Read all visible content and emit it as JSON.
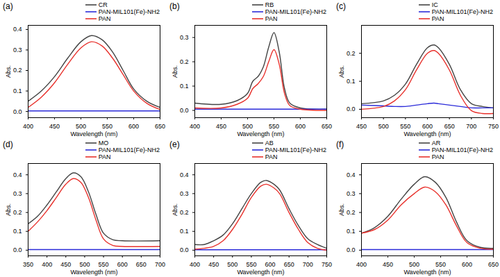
{
  "chart_data": [
    {
      "type": "line",
      "title": "(a)",
      "x_label": "Wavelength (nm)",
      "y_label": "Abs.",
      "legend": "top-right",
      "x": [
        400,
        425,
        450,
        475,
        500,
        520,
        540,
        560,
        580,
        600,
        625,
        650
      ],
      "xlim": [
        400,
        650
      ],
      "xticks": [
        400,
        450,
        500,
        550,
        600,
        650
      ],
      "ylim": [
        -0.03,
        0.42
      ],
      "yticks": [
        {
          "value": 0,
          "label": "0.0"
        },
        0.1,
        0.2,
        0.3,
        0.4
      ],
      "series": [
        {
          "name": "CR",
          "color": "#444444",
          "line_style": "solid",
          "values": [
            0.05,
            0.1,
            0.17,
            0.26,
            0.34,
            0.37,
            0.35,
            0.29,
            0.2,
            0.11,
            0.05,
            0.02
          ]
        },
        {
          "name": "PAN-MIL101(Fe)-NH2",
          "color": "#2b2bd9",
          "line_style": "solid",
          "values": [
            0.003,
            0.003,
            0.003,
            0.003,
            0.003,
            0.003,
            0.003,
            0.003,
            0.003,
            0.003,
            0.003,
            0.003
          ]
        },
        {
          "name": "PAN",
          "color": "#e8312c",
          "line_style": "solid",
          "values": [
            0.02,
            0.07,
            0.14,
            0.23,
            0.31,
            0.34,
            0.32,
            0.26,
            0.18,
            0.1,
            0.04,
            0.01
          ]
        }
      ]
    },
    {
      "type": "line",
      "title": "(b)",
      "x_label": "Wavelength (nm)",
      "y_label": "Abs.",
      "legend": "top-right",
      "x": [
        400,
        450,
        480,
        500,
        510,
        520,
        530,
        540,
        550,
        560,
        570,
        580,
        600,
        650
      ],
      "xlim": [
        400,
        650
      ],
      "xticks": [
        400,
        450,
        500,
        550,
        600,
        650
      ],
      "ylim": [
        -0.03,
        0.35
      ],
      "yticks": [
        {
          "value": 0,
          "label": "0.0"
        },
        0.1,
        0.2,
        0.3
      ],
      "series": [
        {
          "name": "RB",
          "color": "#444444",
          "line_style": "solid",
          "values": [
            0.03,
            0.025,
            0.04,
            0.07,
            0.12,
            0.14,
            0.18,
            0.26,
            0.32,
            0.24,
            0.09,
            0.03,
            0.01,
            0.005
          ]
        },
        {
          "name": "PAN-MIL101(Fe)-NH2",
          "color": "#2b2bd9",
          "line_style": "solid",
          "values": [
            0.005,
            0.005,
            0.005,
            0.005,
            0.005,
            0.005,
            0.005,
            0.005,
            0.005,
            0.005,
            0.005,
            0.005,
            0.005,
            0.005
          ]
        },
        {
          "name": "PAN",
          "color": "#e8312c",
          "line_style": "solid",
          "values": [
            0.01,
            0.01,
            0.025,
            0.05,
            0.09,
            0.11,
            0.14,
            0.2,
            0.25,
            0.19,
            0.07,
            0.02,
            0.005,
            0.0
          ]
        }
      ]
    },
    {
      "type": "line",
      "title": "(c)",
      "x_label": "Wavelength (nm)",
      "y_label": "Abs.",
      "legend": "top-right",
      "x": [
        450,
        500,
        525,
        550,
        575,
        600,
        615,
        625,
        650,
        675,
        700,
        725,
        750
      ],
      "xlim": [
        450,
        750
      ],
      "xticks": [
        450,
        500,
        550,
        600,
        650,
        700,
        750
      ],
      "ylim": [
        -0.03,
        0.3
      ],
      "yticks": [
        {
          "value": 0,
          "label": "0.0"
        },
        0.1,
        0.2
      ],
      "series": [
        {
          "name": "IC",
          "color": "#444444",
          "line_style": "solid",
          "values": [
            0.02,
            0.03,
            0.05,
            0.09,
            0.16,
            0.22,
            0.23,
            0.22,
            0.16,
            0.07,
            0.02,
            0.01,
            0.005
          ]
        },
        {
          "name": "PAN-MIL101(Fe)-NH2",
          "color": "#2b2bd9",
          "line_style": "solid",
          "values": [
            0.015,
            0.012,
            0.01,
            0.01,
            0.015,
            0.02,
            0.022,
            0.02,
            0.015,
            0.01,
            0.005,
            0.005,
            0.005
          ]
        },
        {
          "name": "PAN",
          "color": "#e8312c",
          "line_style": "solid",
          "values": [
            0.0,
            0.01,
            0.03,
            0.07,
            0.14,
            0.2,
            0.21,
            0.2,
            0.14,
            0.05,
            -0.005,
            -0.015,
            -0.015
          ]
        }
      ]
    },
    {
      "type": "line",
      "title": "(d)",
      "x_label": "Wavelength (nm)",
      "y_label": "Abs.",
      "legend": "top-right",
      "x": [
        350,
        375,
        400,
        425,
        450,
        470,
        490,
        510,
        530,
        550,
        575,
        600,
        700
      ],
      "xlim": [
        350,
        700
      ],
      "xticks": [
        350,
        400,
        450,
        500,
        550,
        600,
        650,
        700
      ],
      "ylim": [
        -0.03,
        0.46
      ],
      "yticks": [
        {
          "value": 0,
          "label": "0.0"
        },
        0.1,
        0.2,
        0.3,
        0.4
      ],
      "series": [
        {
          "name": "MO",
          "color": "#444444",
          "line_style": "solid",
          "values": [
            0.14,
            0.18,
            0.24,
            0.31,
            0.38,
            0.41,
            0.39,
            0.31,
            0.19,
            0.09,
            0.055,
            0.05,
            0.05
          ]
        },
        {
          "name": "PAN-MIL101(Fe)-NH2",
          "color": "#2b2bd9",
          "line_style": "solid",
          "values": [
            0.003,
            0.003,
            0.003,
            0.003,
            0.003,
            0.003,
            0.003,
            0.003,
            0.003,
            0.003,
            0.003,
            0.003,
            0.003
          ]
        },
        {
          "name": "PAN",
          "color": "#e8312c",
          "line_style": "solid",
          "values": [
            0.1,
            0.15,
            0.21,
            0.28,
            0.35,
            0.38,
            0.36,
            0.28,
            0.16,
            0.06,
            0.025,
            0.02,
            0.02
          ]
        }
      ]
    },
    {
      "type": "line",
      "title": "(e)",
      "x_label": "Wavelength (nm)",
      "y_label": "Abs.",
      "legend": "top-right",
      "x": [
        400,
        425,
        450,
        475,
        500,
        525,
        550,
        575,
        590,
        610,
        625,
        650,
        675,
        700,
        725,
        750
      ],
      "xlim": [
        400,
        750
      ],
      "xticks": [
        400,
        450,
        500,
        550,
        600,
        650,
        700,
        750
      ],
      "ylim": [
        -0.03,
        0.46
      ],
      "yticks": [
        {
          "value": 0,
          "label": "0.0"
        },
        0.1,
        0.2,
        0.3,
        0.4
      ],
      "series": [
        {
          "name": "AB",
          "color": "#444444",
          "line_style": "solid",
          "values": [
            0.03,
            0.03,
            0.05,
            0.08,
            0.14,
            0.22,
            0.3,
            0.36,
            0.37,
            0.35,
            0.32,
            0.22,
            0.13,
            0.06,
            0.03,
            0.01
          ]
        },
        {
          "name": "PAN-MIL101(Fe)-NH2",
          "color": "#2b2bd9",
          "line_style": "solid",
          "values": [
            0.002,
            0.002,
            0.002,
            0.002,
            0.002,
            0.002,
            0.002,
            0.002,
            0.002,
            0.002,
            0.002,
            0.002,
            0.002,
            0.002,
            0.002,
            0.002
          ]
        },
        {
          "name": "PAN",
          "color": "#e8312c",
          "line_style": "solid",
          "values": [
            0.005,
            0.01,
            0.02,
            0.05,
            0.11,
            0.19,
            0.28,
            0.34,
            0.35,
            0.33,
            0.3,
            0.2,
            0.11,
            0.04,
            0.01,
            0.0
          ]
        }
      ]
    },
    {
      "type": "line",
      "title": "(f)",
      "x_label": "Wavelength (nm)",
      "y_label": "Abs.",
      "legend": "top-right",
      "x": [
        400,
        425,
        450,
        475,
        500,
        520,
        540,
        560,
        580,
        600,
        625,
        650
      ],
      "xlim": [
        400,
        650
      ],
      "xticks": [
        400,
        450,
        500,
        550,
        600,
        650
      ],
      "ylim": [
        -0.03,
        0.46
      ],
      "yticks": [
        {
          "value": 0,
          "label": "0.0"
        },
        0.1,
        0.2,
        0.3,
        0.4
      ],
      "series": [
        {
          "name": "AR",
          "color": "#444444",
          "line_style": "solid",
          "values": [
            0.09,
            0.12,
            0.18,
            0.27,
            0.35,
            0.39,
            0.36,
            0.28,
            0.15,
            0.05,
            0.015,
            0.01
          ]
        },
        {
          "name": "PAN-MIL101(Fe)-NH2",
          "color": "#2b2bd9",
          "line_style": "solid",
          "values": [
            0.003,
            0.003,
            0.003,
            0.003,
            0.003,
            0.003,
            0.003,
            0.003,
            0.003,
            0.003,
            0.003,
            0.003
          ]
        },
        {
          "name": "PAN",
          "color": "#e8312c",
          "line_style": "solid",
          "values": [
            0.09,
            0.11,
            0.16,
            0.24,
            0.3,
            0.335,
            0.31,
            0.24,
            0.13,
            0.04,
            0.01,
            0.005
          ]
        }
      ]
    }
  ]
}
